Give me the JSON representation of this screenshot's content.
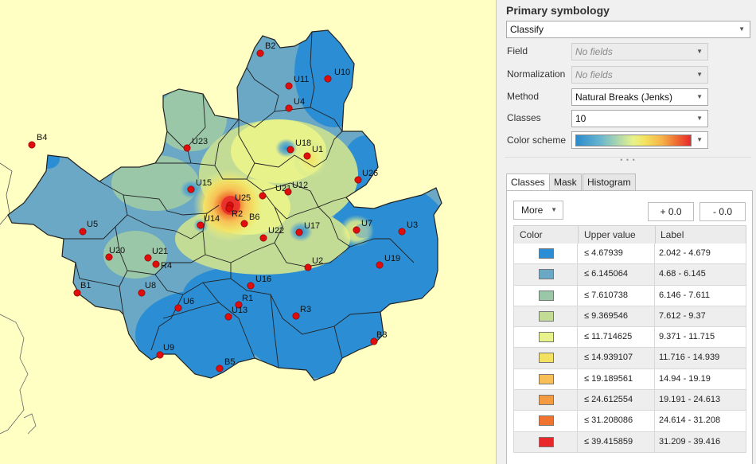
{
  "panel": {
    "title": "Primary symbology",
    "renderer": "Classify",
    "field_label": "Field",
    "field_value": "No fields",
    "normalization_label": "Normalization",
    "normalization_value": "No fields",
    "method_label": "Method",
    "method_value": "Natural Breaks (Jenks)",
    "classes_label": "Classes",
    "classes_value": "10",
    "colorscheme_label": "Color scheme",
    "tabs": [
      "Classes",
      "Mask",
      "Histogram"
    ],
    "more_label": "More",
    "plus_label": "+ 0.0",
    "minus_label": "- 0.0",
    "columns": {
      "color": "Color",
      "upper": "Upper value",
      "label": "Label"
    },
    "classes": [
      {
        "color": "#2b8dd3",
        "upper": "≤   4.67939",
        "label": "2.042 - 4.679"
      },
      {
        "color": "#6aa8c6",
        "upper": "≤   6.145064",
        "label": "4.68 - 6.145"
      },
      {
        "color": "#9bc7a9",
        "upper": "≤   7.610738",
        "label": "6.146 - 7.611"
      },
      {
        "color": "#c3dc95",
        "upper": "≤   9.369546",
        "label": "7.612 - 9.37"
      },
      {
        "color": "#e7f28a",
        "upper": "≤   11.714625",
        "label": "9.371 - 11.715"
      },
      {
        "color": "#f3e162",
        "upper": "≤   14.939107",
        "label": "11.716 - 14.939"
      },
      {
        "color": "#f7bf55",
        "upper": "≤   19.189561",
        "label": "14.94 - 19.19"
      },
      {
        "color": "#f49a41",
        "upper": "≤   24.612554",
        "label": "19.191 - 24.613"
      },
      {
        "color": "#f0732f",
        "upper": "≤   31.208086",
        "label": "24.614 - 31.208"
      },
      {
        "color": "#e8282a",
        "upper": "≤   39.415859",
        "label": "31.209 - 39.416"
      }
    ]
  },
  "map": {
    "sites": [
      "B2",
      "U10",
      "U11",
      "U4",
      "B4",
      "U23",
      "U18",
      "U1",
      "U26",
      "U15",
      "U25",
      "U21",
      "U12",
      "R2",
      "U14",
      "B6",
      "U5",
      "U7",
      "U3",
      "U22",
      "U17",
      "U20",
      "U21",
      "R4",
      "U2",
      "U19",
      "B1",
      "U8",
      "U16",
      "R1",
      "U6",
      "U13",
      "R3",
      "B3",
      "U9",
      "B5"
    ]
  }
}
